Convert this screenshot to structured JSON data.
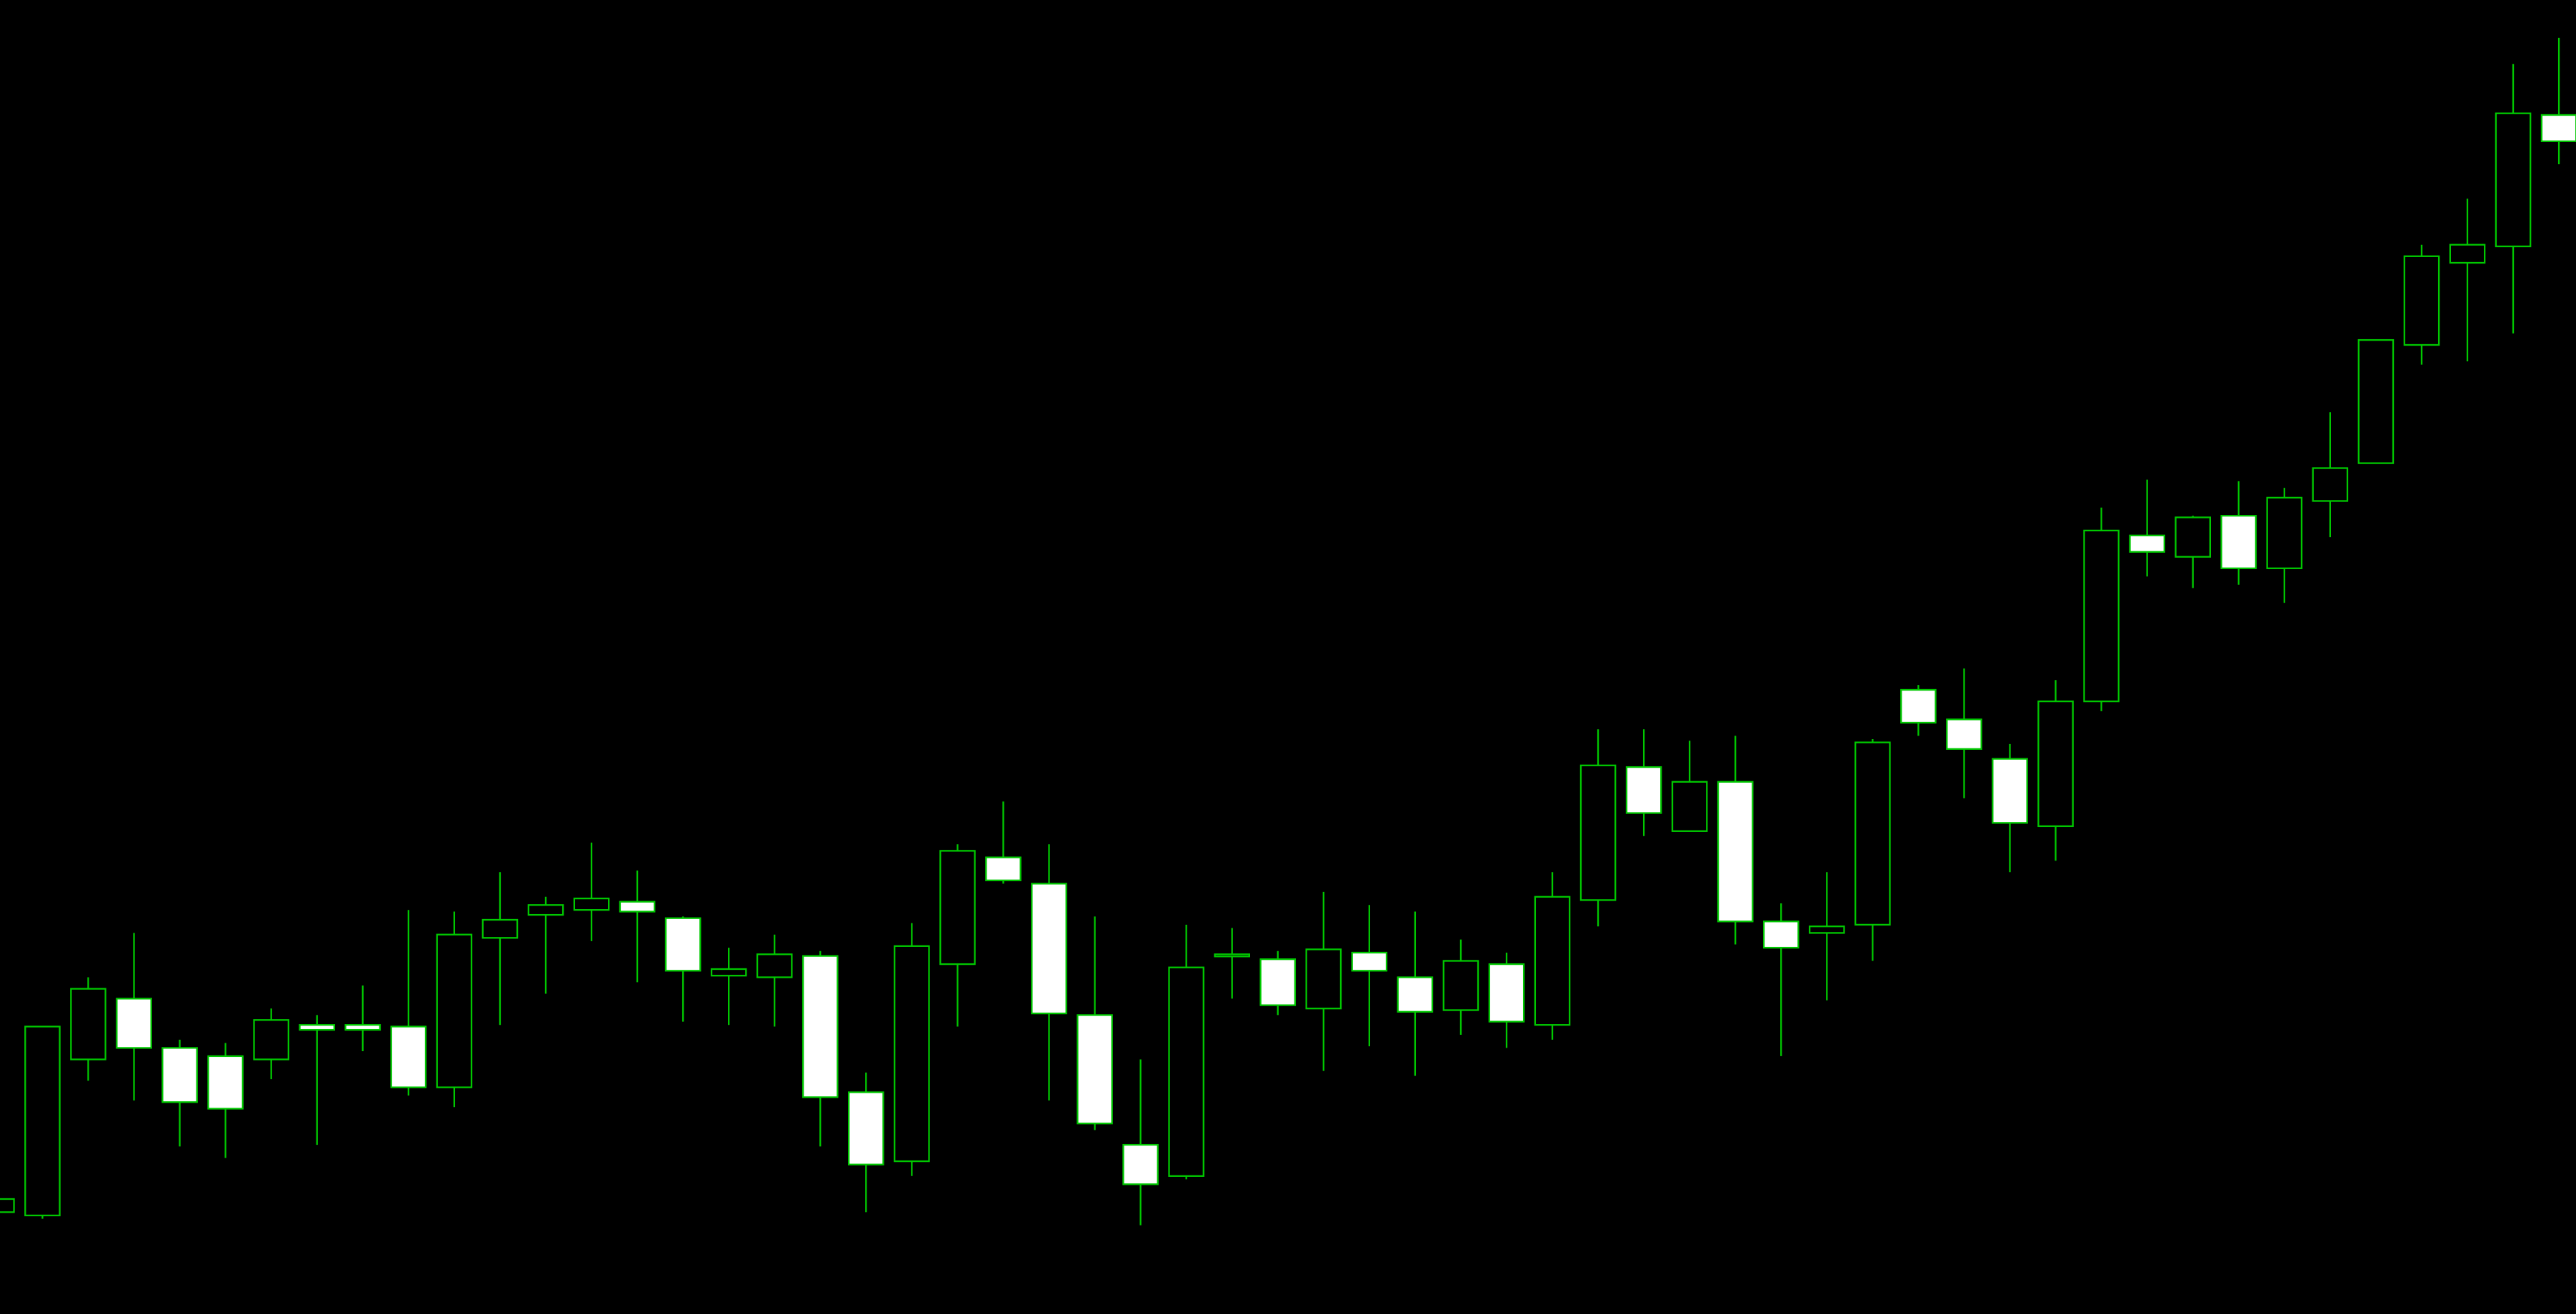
{
  "chart_data": {
    "type": "candlestick",
    "title": "",
    "xlabel": "",
    "ylabel": "",
    "grid": false,
    "legend": "none",
    "ylim": [
      0,
      800
    ],
    "colors": {
      "background": "#000000",
      "outline": "#00c800",
      "bearish_fill": "#ffffff",
      "bullish_fill": "#000000"
    },
    "candles": [
      {
        "open": 62,
        "high": 70,
        "low": 22,
        "close": 70
      },
      {
        "open": 60,
        "high": 175,
        "low": 58,
        "close": 175
      },
      {
        "open": 155,
        "high": 205,
        "low": 142,
        "close": 198
      },
      {
        "open": 192,
        "high": 232,
        "low": 130,
        "close": 162
      },
      {
        "open": 162,
        "high": 167,
        "low": 102,
        "close": 129
      },
      {
        "open": 157,
        "high": 165,
        "low": 95,
        "close": 125
      },
      {
        "open": 155,
        "high": 186,
        "low": 143,
        "close": 179
      },
      {
        "open": 176,
        "high": 182,
        "low": 103,
        "close": 173
      },
      {
        "open": 176,
        "high": 200,
        "low": 160,
        "close": 173
      },
      {
        "open": 175,
        "high": 246,
        "low": 133,
        "close": 138
      },
      {
        "open": 138,
        "high": 245,
        "low": 126,
        "close": 231
      },
      {
        "open": 229,
        "high": 269,
        "low": 176,
        "close": 240
      },
      {
        "open": 243,
        "high": 254,
        "low": 195,
        "close": 249
      },
      {
        "open": 246,
        "high": 287,
        "low": 227,
        "close": 253
      },
      {
        "open": 251,
        "high": 270,
        "low": 202,
        "close": 245
      },
      {
        "open": 241,
        "high": 242,
        "low": 178,
        "close": 209
      },
      {
        "open": 206,
        "high": 223,
        "low": 176,
        "close": 210
      },
      {
        "open": 205,
        "high": 231,
        "low": 175,
        "close": 219
      },
      {
        "open": 218,
        "high": 221,
        "low": 102,
        "close": 132
      },
      {
        "open": 135,
        "high": 147,
        "low": 62,
        "close": 91
      },
      {
        "open": 93,
        "high": 238,
        "low": 84,
        "close": 224
      },
      {
        "open": 213,
        "high": 286,
        "low": 175,
        "close": 282
      },
      {
        "open": 278,
        "high": 312,
        "low": 262,
        "close": 264
      },
      {
        "open": 262,
        "high": 286,
        "low": 130,
        "close": 183
      },
      {
        "open": 182,
        "high": 242,
        "low": 112,
        "close": 116
      },
      {
        "open": 103,
        "high": 155,
        "low": 54,
        "close": 79
      },
      {
        "open": 84,
        "high": 237,
        "low": 82,
        "close": 211
      },
      {
        "open": 218,
        "high": 235,
        "low": 192,
        "close": 219
      },
      {
        "open": 216,
        "high": 221,
        "low": 182,
        "close": 188
      },
      {
        "open": 186,
        "high": 257,
        "low": 148,
        "close": 222
      },
      {
        "open": 220,
        "high": 249,
        "low": 163,
        "close": 209
      },
      {
        "open": 205,
        "high": 245,
        "low": 145,
        "close": 184
      },
      {
        "open": 185,
        "high": 228,
        "low": 170,
        "close": 215
      },
      {
        "open": 213,
        "high": 220,
        "low": 162,
        "close": 178
      },
      {
        "open": 176,
        "high": 269,
        "low": 167,
        "close": 254
      },
      {
        "open": 252,
        "high": 356,
        "low": 236,
        "close": 334
      },
      {
        "open": 333,
        "high": 356,
        "low": 291,
        "close": 305
      },
      {
        "open": 294,
        "high": 349,
        "low": 294,
        "close": 324
      },
      {
        "open": 324,
        "high": 352,
        "low": 225,
        "close": 239
      },
      {
        "open": 239,
        "high": 250,
        "low": 157,
        "close": 223
      },
      {
        "open": 232,
        "high": 269,
        "low": 191,
        "close": 236
      },
      {
        "open": 237,
        "high": 350,
        "low": 215,
        "close": 348
      },
      {
        "open": 380,
        "high": 383,
        "low": 352,
        "close": 360
      },
      {
        "open": 362,
        "high": 393,
        "low": 314,
        "close": 344
      },
      {
        "open": 338,
        "high": 347,
        "low": 269,
        "close": 299
      },
      {
        "open": 297,
        "high": 386,
        "low": 276,
        "close": 373
      },
      {
        "open": 373,
        "high": 491,
        "low": 367,
        "close": 477
      },
      {
        "open": 474,
        "high": 508,
        "low": 449,
        "close": 464
      },
      {
        "open": 461,
        "high": 486,
        "low": 442,
        "close": 485
      },
      {
        "open": 486,
        "high": 507,
        "low": 444,
        "close": 454
      },
      {
        "open": 454,
        "high": 503,
        "low": 433,
        "close": 497
      },
      {
        "open": 495,
        "high": 549,
        "low": 473,
        "close": 515
      },
      {
        "open": 518,
        "high": 592,
        "low": 518,
        "close": 593
      },
      {
        "open": 590,
        "high": 651,
        "low": 578,
        "close": 644
      },
      {
        "open": 640,
        "high": 679,
        "low": 580,
        "close": 651
      },
      {
        "open": 650,
        "high": 761,
        "low": 597,
        "close": 731
      },
      {
        "open": 730,
        "high": 777,
        "low": 700,
        "close": 714
      }
    ]
  }
}
